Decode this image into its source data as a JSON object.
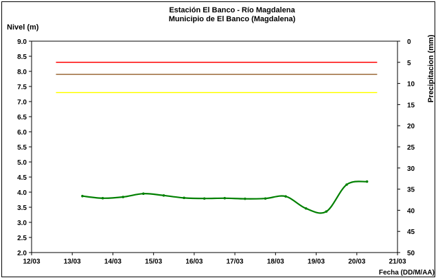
{
  "chart_data": {
    "type": "line",
    "title": "Estación El Banco - Río Magdalena",
    "subtitle": "Municipio de El Banco (Magdalena)",
    "ylabel": "Nivel (m)",
    "y2label": "Precipitacion (mm)",
    "xlabel": "Fecha (DD/M/AA)",
    "ylim": [
      2.0,
      9.0
    ],
    "y2lim": [
      0,
      50
    ],
    "y2_reversed": true,
    "xlim_days": [
      12,
      21
    ],
    "grid": false,
    "legend": "none",
    "y_ticks": [
      "2.0",
      "2.5",
      "3.0",
      "3.5",
      "4.0",
      "4.5",
      "5.0",
      "5.5",
      "6.0",
      "6.5",
      "7.0",
      "7.5",
      "8.0",
      "8.5",
      "9.0"
    ],
    "y2_ticks": [
      "0",
      "5",
      "10",
      "15",
      "20",
      "25",
      "30",
      "35",
      "40",
      "45",
      "50"
    ],
    "x_ticks": [
      "12/03",
      "13/03",
      "14/03",
      "15/03",
      "16/03",
      "17/03",
      "18/03",
      "19/03",
      "20/03",
      "21/03"
    ],
    "thresholds": [
      {
        "value": 8.3,
        "color": "#ff0000"
      },
      {
        "value": 7.9,
        "color": "#996633"
      },
      {
        "value": 7.3,
        "color": "#ffff00"
      }
    ],
    "threshold_x_range": [
      12.6,
      20.5
    ],
    "series": [
      {
        "color": "#008000",
        "x": [
          13.25,
          13.75,
          14.25,
          14.75,
          15.25,
          15.75,
          16.25,
          16.75,
          17.25,
          17.75,
          18.25,
          18.75,
          19.25,
          19.75,
          20.25
        ],
        "y": [
          3.87,
          3.8,
          3.84,
          3.95,
          3.89,
          3.81,
          3.79,
          3.8,
          3.78,
          3.79,
          3.86,
          3.46,
          3.36,
          4.25,
          4.35
        ]
      }
    ]
  }
}
